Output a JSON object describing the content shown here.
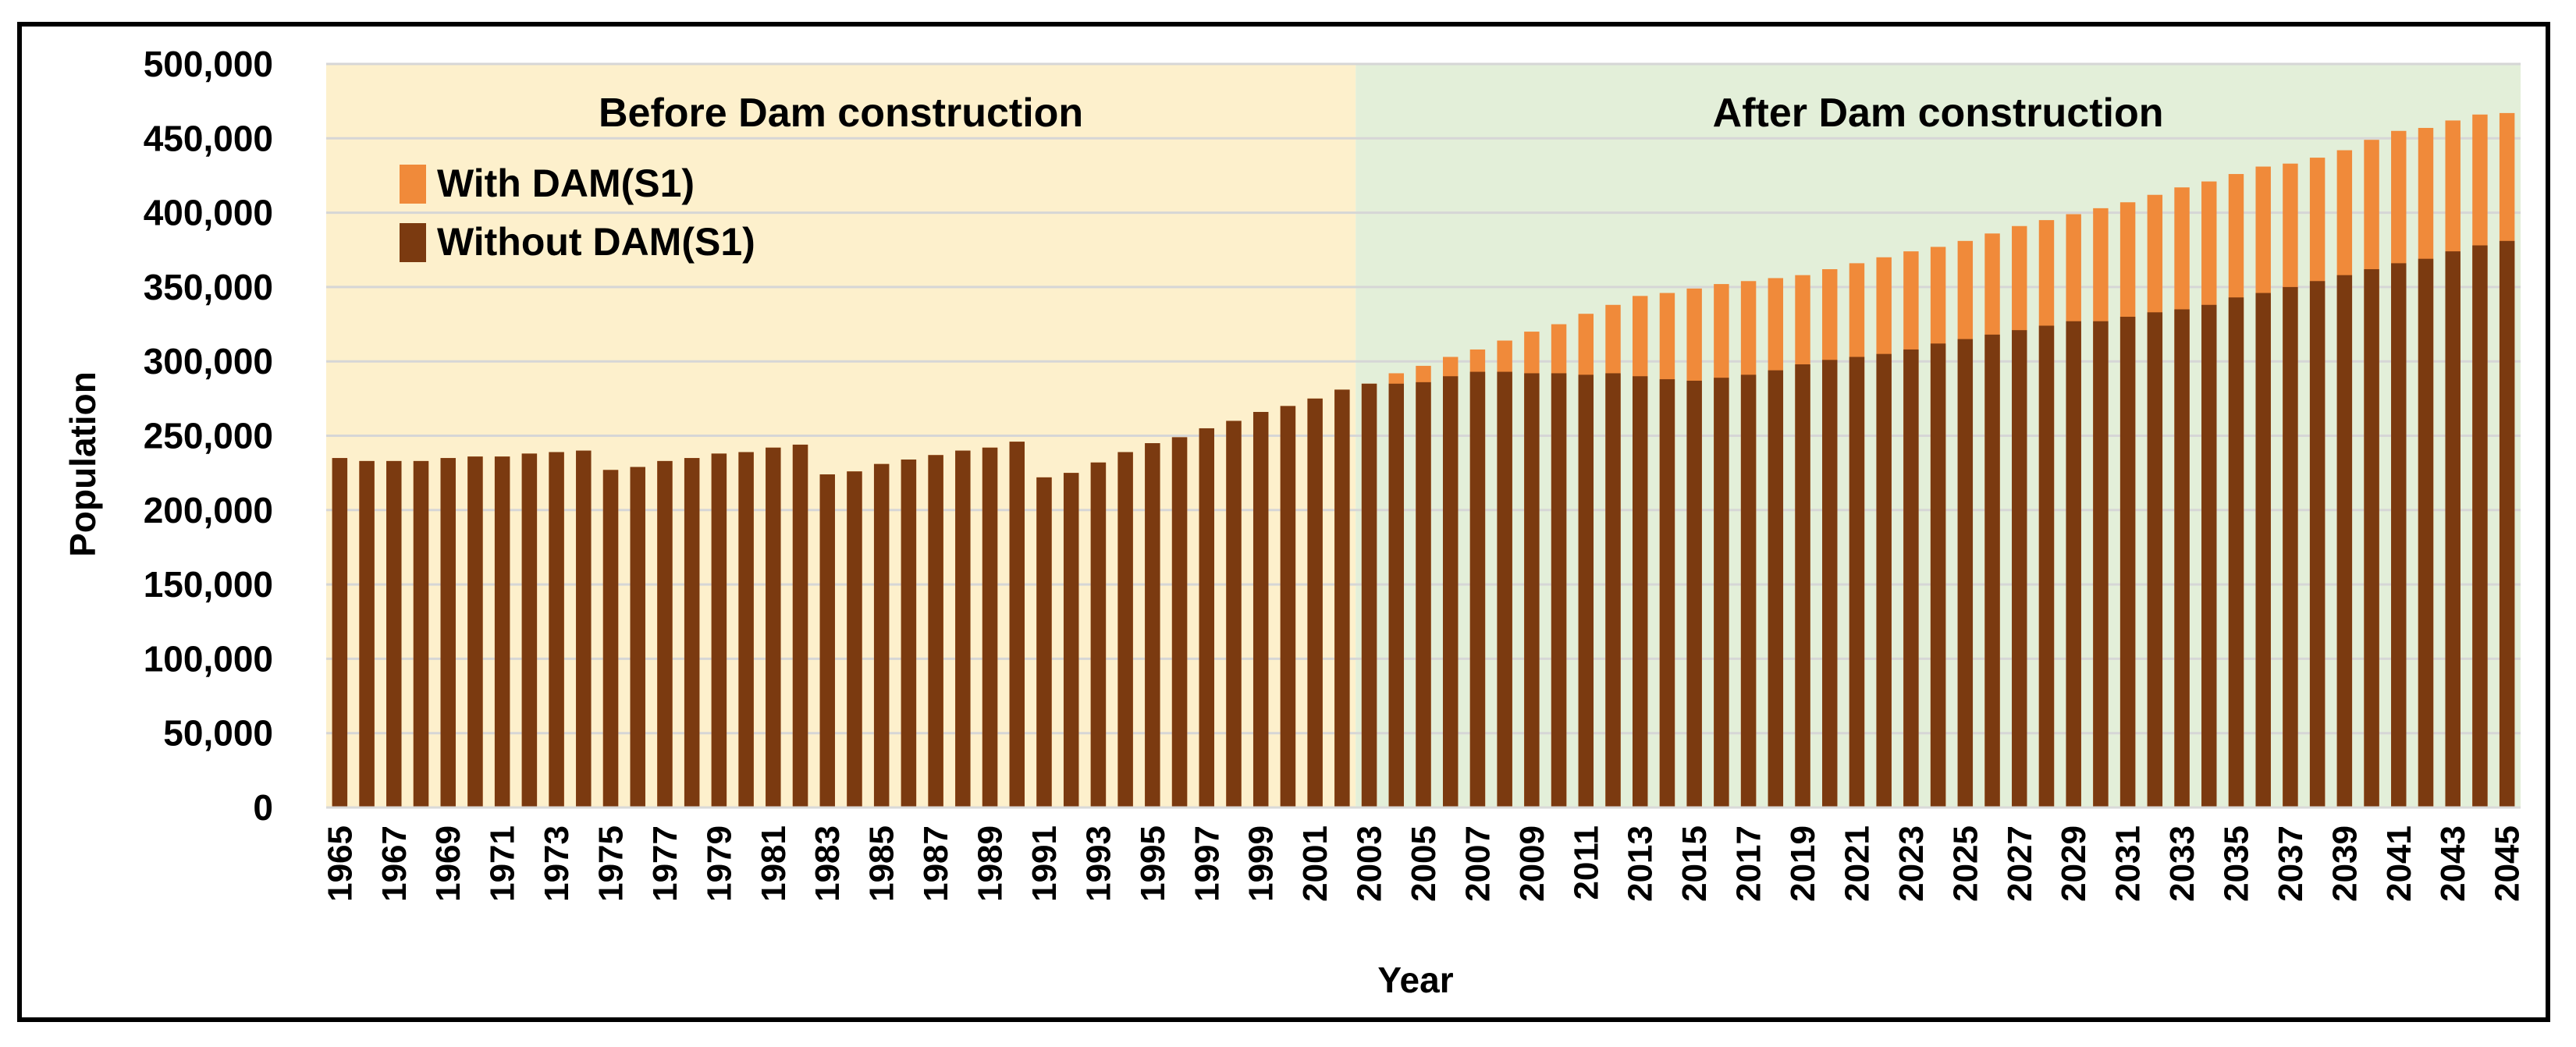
{
  "chart_data": {
    "type": "bar",
    "title": "",
    "xlabel": "Year",
    "ylabel": "Population",
    "ylim": [
      0,
      500000
    ],
    "ytick_step": 50000,
    "ytick_labels": [
      "0",
      "50,000",
      "100,000",
      "150,000",
      "200,000",
      "250,000",
      "300,000",
      "350,000",
      "400,000",
      "450,000",
      "500,000"
    ],
    "grid": "horizontal",
    "legend_position": "top-left",
    "regions": [
      {
        "label": "Before Dam construction",
        "start": 1965,
        "end": 2002,
        "color": "#fdf0cc"
      },
      {
        "label": "After Dam construction",
        "start": 2003,
        "end": 2045,
        "color": "#e3efd9"
      }
    ],
    "categories": [
      1965,
      1966,
      1967,
      1968,
      1969,
      1970,
      1971,
      1972,
      1973,
      1974,
      1975,
      1976,
      1977,
      1978,
      1979,
      1980,
      1981,
      1982,
      1983,
      1984,
      1985,
      1986,
      1987,
      1988,
      1989,
      1990,
      1991,
      1992,
      1993,
      1994,
      1995,
      1996,
      1997,
      1998,
      1999,
      2000,
      2001,
      2002,
      2003,
      2004,
      2005,
      2006,
      2007,
      2008,
      2009,
      2010,
      2011,
      2012,
      2013,
      2014,
      2015,
      2016,
      2017,
      2018,
      2019,
      2020,
      2021,
      2022,
      2023,
      2024,
      2025,
      2026,
      2027,
      2028,
      2029,
      2030,
      2031,
      2032,
      2033,
      2034,
      2035,
      2036,
      2037,
      2038,
      2039,
      2040,
      2041,
      2042,
      2043,
      2044,
      2045
    ],
    "xtick_labels": [
      "1965",
      "1967",
      "1969",
      "1971",
      "1973",
      "1975",
      "1977",
      "1979",
      "1981",
      "1983",
      "1985",
      "1987",
      "1989",
      "1991",
      "1993",
      "1995",
      "1997",
      "1999",
      "2001",
      "2003",
      "2005",
      "2007",
      "2009",
      "2011",
      "2013",
      "2015",
      "2017",
      "2019",
      "2021",
      "2023",
      "2025",
      "2027",
      "2029",
      "2031",
      "2033",
      "2035",
      "2037",
      "2039",
      "2041",
      "2043",
      "2045"
    ],
    "series": [
      {
        "name": "With DAM(S1)",
        "color": "#f08a3a",
        "values": [
          235000,
          233000,
          233000,
          233000,
          235000,
          236000,
          236000,
          238000,
          239000,
          240000,
          227000,
          229000,
          233000,
          235000,
          238000,
          239000,
          242000,
          244000,
          224000,
          226000,
          231000,
          234000,
          237000,
          240000,
          242000,
          246000,
          222000,
          225000,
          232000,
          239000,
          245000,
          249000,
          255000,
          260000,
          266000,
          270000,
          275000,
          281000,
          285000,
          292000,
          297000,
          303000,
          308000,
          314000,
          320000,
          325000,
          332000,
          338000,
          344000,
          346000,
          349000,
          352000,
          354000,
          356000,
          358000,
          362000,
          366000,
          370000,
          374000,
          377000,
          381000,
          386000,
          391000,
          395000,
          399000,
          403000,
          407000,
          412000,
          417000,
          421000,
          426000,
          431000,
          433000,
          437000,
          442000,
          449000,
          455000,
          457000,
          462000,
          466000,
          467000
        ]
      },
      {
        "name": "Without DAM(S1)",
        "color": "#7b3a10",
        "values": [
          235000,
          233000,
          233000,
          233000,
          235000,
          236000,
          236000,
          238000,
          239000,
          240000,
          227000,
          229000,
          233000,
          235000,
          238000,
          239000,
          242000,
          244000,
          224000,
          226000,
          231000,
          234000,
          237000,
          240000,
          242000,
          246000,
          222000,
          225000,
          232000,
          239000,
          245000,
          249000,
          255000,
          260000,
          266000,
          270000,
          275000,
          281000,
          285000,
          285000,
          286000,
          290000,
          293000,
          293000,
          292000,
          292000,
          291000,
          292000,
          290000,
          288000,
          287000,
          289000,
          291000,
          294000,
          298000,
          301000,
          303000,
          305000,
          308000,
          312000,
          315000,
          318000,
          321000,
          324000,
          327000,
          327000,
          330000,
          333000,
          335000,
          338000,
          343000,
          346000,
          350000,
          354000,
          358000,
          362000,
          366000,
          369000,
          374000,
          378000,
          381000
        ]
      }
    ]
  }
}
